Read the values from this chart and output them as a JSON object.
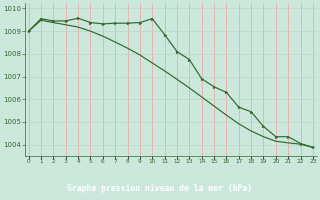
{
  "hours": [
    0,
    1,
    2,
    3,
    4,
    5,
    6,
    7,
    8,
    9,
    10,
    11,
    12,
    13,
    14,
    15,
    16,
    17,
    18,
    19,
    20,
    21,
    22,
    23
  ],
  "line_smooth": [
    1009.0,
    1009.48,
    1009.38,
    1009.28,
    1009.18,
    1009.0,
    1008.78,
    1008.52,
    1008.25,
    1007.95,
    1007.6,
    1007.25,
    1006.88,
    1006.5,
    1006.1,
    1005.7,
    1005.3,
    1004.92,
    1004.6,
    1004.35,
    1004.15,
    1004.08,
    1004.02,
    1003.88
  ],
  "line_marker": [
    1009.0,
    1009.55,
    1009.45,
    1009.45,
    1009.57,
    1009.38,
    1009.32,
    1009.35,
    1009.35,
    1009.38,
    1009.55,
    1008.85,
    1008.1,
    1007.75,
    1006.9,
    1006.55,
    1006.3,
    1005.65,
    1005.45,
    1004.8,
    1004.35,
    1004.35,
    1004.05,
    1003.88
  ],
  "ylim": [
    1003.5,
    1010.25
  ],
  "yticks": [
    1004,
    1005,
    1006,
    1007,
    1008,
    1009,
    1010
  ],
  "xticks": [
    0,
    1,
    2,
    3,
    4,
    5,
    6,
    7,
    8,
    9,
    10,
    11,
    12,
    13,
    14,
    15,
    16,
    17,
    18,
    19,
    20,
    21,
    22,
    23
  ],
  "xlabel": "Graphe pression niveau de la mer (hPa)",
  "line_color": "#2d6a2d",
  "bg_color": "#cce8dc",
  "grid_color_v": "#f0a0a0",
  "grid_color_h": "#b8d8c8",
  "label_bg": "#2d6a2d",
  "label_fg": "#ffffff"
}
